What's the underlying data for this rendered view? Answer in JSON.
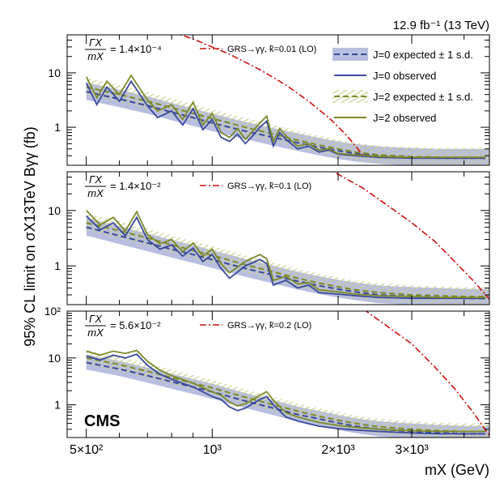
{
  "figure": {
    "lumi_label": "12.9 fb⁻¹ (13 TeV)",
    "experiment": "CMS",
    "ylabel": "95% CL limit on σX13TeV Bγγ (fb)",
    "xlabel": "mX (GeV)"
  },
  "chart_data": {
    "type": "line",
    "x_scale": "log",
    "xlim": [
      450,
      4600
    ],
    "x_ticks": [
      {
        "value": 500,
        "label": "5×10²"
      },
      {
        "value": 1000,
        "label": "10³"
      },
      {
        "value": 2000,
        "label": "2×10³"
      },
      {
        "value": 3000,
        "label": "3×10³"
      }
    ],
    "legend": [
      {
        "name": "J=0 expected ± 1 s.d.",
        "style": "dashed-band",
        "color": "#3a4a9a",
        "band": "#b8bedf"
      },
      {
        "name": "J=0 observed",
        "style": "solid",
        "color": "#3a4a9a"
      },
      {
        "name": "J=2 expected ± 1 s.d.",
        "style": "dashed-hatched",
        "color": "#7c8a2c",
        "band": "#c9cf8e"
      },
      {
        "name": "J=2 observed",
        "style": "solid",
        "color": "#7c8a2c"
      }
    ],
    "panels": [
      {
        "width_label_num": "ΓX",
        "width_label_den": "mX",
        "width_label_value": "= 1.4×10⁻⁴",
        "ylim": [
          0.2,
          50
        ],
        "y_ticks": [
          {
            "value": 1,
            "label": "1"
          },
          {
            "value": 10,
            "label": "10"
          }
        ],
        "theory_label": "GRS→γγ, k̃=0.01 (LO)",
        "theory": {
          "x": [
            700,
            900,
            1100,
            1300,
            1500,
            1700,
            1900,
            2100,
            2300
          ],
          "y": [
            80,
            42,
            22,
            11.5,
            6,
            3,
            1.5,
            0.7,
            0.3
          ]
        },
        "expected_j0": {
          "x": [
            500,
            600,
            700,
            800,
            900,
            1000,
            1200,
            1400,
            1600,
            1800,
            2000,
            2200,
            2500,
            3000,
            3500,
            4000,
            4500
          ],
          "y": [
            4.5,
            3.3,
            2.5,
            1.9,
            1.5,
            1.2,
            0.85,
            0.65,
            0.52,
            0.43,
            0.37,
            0.33,
            0.3,
            0.28,
            0.27,
            0.27,
            0.27
          ]
        },
        "expected_j2": {
          "x": [
            500,
            600,
            700,
            800,
            900,
            1000,
            1200,
            1400,
            1600,
            1800,
            2000,
            2200,
            2500,
            3000,
            3500,
            4000,
            4500
          ],
          "y": [
            5.5,
            4.0,
            3.0,
            2.3,
            1.8,
            1.45,
            1.0,
            0.75,
            0.58,
            0.47,
            0.4,
            0.35,
            0.31,
            0.29,
            0.28,
            0.28,
            0.28
          ]
        },
        "observed_j0": {
          "x": [
            500,
            530,
            560,
            600,
            640,
            700,
            740,
            800,
            850,
            900,
            950,
            1000,
            1050,
            1100,
            1150,
            1200,
            1250,
            1300,
            1350,
            1400,
            1450,
            1500,
            1600,
            1700,
            1800,
            1900,
            2000,
            2200,
            2500,
            3000,
            3500,
            4000,
            4500
          ],
          "y": [
            6.5,
            2.6,
            5.5,
            3.0,
            7.0,
            2.5,
            1.5,
            2.0,
            1.1,
            2.2,
            0.9,
            1.4,
            0.65,
            0.55,
            0.75,
            0.5,
            0.7,
            1.0,
            1.3,
            0.45,
            0.8,
            0.6,
            0.4,
            0.45,
            0.35,
            0.38,
            0.32,
            0.3,
            0.28,
            0.27,
            0.27,
            0.27,
            0.27
          ]
        },
        "observed_j2": {
          "x": [
            500,
            530,
            560,
            600,
            640,
            700,
            740,
            800,
            850,
            900,
            950,
            1000,
            1050,
            1100,
            1150,
            1200,
            1250,
            1300,
            1350,
            1400,
            1450,
            1500,
            1600,
            1700,
            1800,
            1900,
            2000,
            2200,
            2500,
            3000,
            3500,
            4000,
            4500
          ],
          "y": [
            8.5,
            3.5,
            7.0,
            4.0,
            9.0,
            3.2,
            2.0,
            2.6,
            1.4,
            2.9,
            1.1,
            1.8,
            0.8,
            0.65,
            0.95,
            0.6,
            0.85,
            1.2,
            1.6,
            0.55,
            0.95,
            0.7,
            0.45,
            0.5,
            0.38,
            0.4,
            0.33,
            0.31,
            0.29,
            0.28,
            0.28,
            0.28,
            0.28
          ]
        }
      },
      {
        "width_label_num": "ΓX",
        "width_label_den": "mX",
        "width_label_value": "= 1.4×10⁻²",
        "ylim": [
          0.2,
          50
        ],
        "y_ticks": [
          {
            "value": 1,
            "label": "1"
          },
          {
            "value": 10,
            "label": "10"
          }
        ],
        "theory_label": "GRS→γγ, k̃=0.1 (LO)",
        "theory": {
          "x": [
            1750,
            2000,
            2300,
            2600,
            3000,
            3400,
            3800,
            4200,
            4600
          ],
          "y": [
            80,
            45,
            25,
            13,
            6,
            2.8,
            1.2,
            0.55,
            0.25
          ]
        },
        "expected_j0": {
          "x": [
            500,
            600,
            700,
            800,
            900,
            1000,
            1200,
            1400,
            1600,
            1800,
            2000,
            2200,
            2500,
            3000,
            3500,
            4000,
            4500
          ],
          "y": [
            5.0,
            3.5,
            2.6,
            2.0,
            1.6,
            1.3,
            0.9,
            0.68,
            0.53,
            0.44,
            0.38,
            0.34,
            0.3,
            0.28,
            0.27,
            0.26,
            0.26
          ]
        },
        "expected_j2": {
          "x": [
            500,
            600,
            700,
            800,
            900,
            1000,
            1200,
            1400,
            1600,
            1800,
            2000,
            2200,
            2500,
            3000,
            3500,
            4000,
            4500
          ],
          "y": [
            6.0,
            4.3,
            3.2,
            2.4,
            1.9,
            1.55,
            1.05,
            0.78,
            0.6,
            0.49,
            0.42,
            0.37,
            0.33,
            0.3,
            0.29,
            0.28,
            0.28
          ]
        },
        "observed_j0": {
          "x": [
            500,
            540,
            580,
            620,
            660,
            700,
            750,
            800,
            850,
            900,
            950,
            1000,
            1050,
            1100,
            1200,
            1300,
            1350,
            1400,
            1500,
            1600,
            1700,
            1800,
            2000,
            2200,
            2500,
            3000,
            3500,
            4000,
            4500
          ],
          "y": [
            8.0,
            4.5,
            6.0,
            3.5,
            7.5,
            3.0,
            2.0,
            2.4,
            1.5,
            2.1,
            1.2,
            1.6,
            0.9,
            0.6,
            1.0,
            1.3,
            1.1,
            0.45,
            0.55,
            0.4,
            0.45,
            0.33,
            0.31,
            0.29,
            0.27,
            0.26,
            0.26,
            0.26,
            0.26
          ]
        },
        "observed_j2": {
          "x": [
            500,
            540,
            580,
            620,
            660,
            700,
            750,
            800,
            850,
            900,
            950,
            1000,
            1050,
            1100,
            1200,
            1300,
            1350,
            1400,
            1500,
            1600,
            1700,
            1800,
            2000,
            2200,
            2500,
            3000,
            3500,
            4000,
            4500
          ],
          "y": [
            10.0,
            5.5,
            7.5,
            4.3,
            9.5,
            3.7,
            2.5,
            3.0,
            1.8,
            2.6,
            1.5,
            2.0,
            1.1,
            0.75,
            1.2,
            1.6,
            1.35,
            0.55,
            0.65,
            0.47,
            0.5,
            0.37,
            0.34,
            0.31,
            0.29,
            0.28,
            0.27,
            0.27,
            0.27
          ]
        }
      },
      {
        "width_label_num": "ΓX",
        "width_label_den": "mX",
        "width_label_value": "= 5.6×10⁻²",
        "ylim": [
          0.2,
          100
        ],
        "y_ticks": [
          {
            "value": 1,
            "label": "1"
          },
          {
            "value": 10,
            "label": "10"
          },
          {
            "value": 100,
            "label": "10²"
          }
        ],
        "theory_label": "GRS→γγ, k̃=0.2 (LO)",
        "theory": {
          "x": [
            2300,
            2600,
            3000,
            3400,
            3800,
            4200,
            4600
          ],
          "y": [
            110,
            50,
            20,
            6.5,
            2.2,
            0.7,
            0.22
          ]
        },
        "expected_j0": {
          "x": [
            500,
            600,
            700,
            800,
            900,
            1000,
            1200,
            1400,
            1600,
            1800,
            2000,
            2200,
            2500,
            3000,
            3500,
            4000,
            4500
          ],
          "y": [
            8.0,
            5.8,
            4.2,
            3.1,
            2.4,
            1.9,
            1.2,
            0.85,
            0.62,
            0.5,
            0.41,
            0.35,
            0.3,
            0.27,
            0.25,
            0.24,
            0.24
          ]
        },
        "expected_j2": {
          "x": [
            500,
            600,
            700,
            800,
            900,
            1000,
            1200,
            1400,
            1600,
            1800,
            2000,
            2200,
            2500,
            3000,
            3500,
            4000,
            4500
          ],
          "y": [
            10.0,
            7.2,
            5.2,
            3.8,
            2.9,
            2.3,
            1.45,
            1.0,
            0.73,
            0.57,
            0.47,
            0.4,
            0.34,
            0.3,
            0.28,
            0.27,
            0.27
          ]
        },
        "observed_j0": {
          "x": [
            500,
            540,
            580,
            620,
            660,
            700,
            750,
            800,
            900,
            1000,
            1050,
            1100,
            1150,
            1200,
            1300,
            1350,
            1400,
            1500,
            1600,
            1800,
            2000,
            2200,
            2500,
            3000,
            3500,
            4000,
            4500
          ],
          "y": [
            11.0,
            9.0,
            11.5,
            10.0,
            12.0,
            7.0,
            4.5,
            3.5,
            2.4,
            1.5,
            1.3,
            0.9,
            0.75,
            0.85,
            1.3,
            1.5,
            1.0,
            0.55,
            0.45,
            0.35,
            0.31,
            0.29,
            0.27,
            0.25,
            0.24,
            0.24,
            0.24
          ]
        },
        "observed_j2": {
          "x": [
            500,
            540,
            580,
            620,
            660,
            700,
            750,
            800,
            900,
            1000,
            1050,
            1100,
            1150,
            1200,
            1300,
            1350,
            1400,
            1500,
            1600,
            1800,
            2000,
            2200,
            2500,
            3000,
            3500,
            4000,
            4500
          ],
          "y": [
            14.0,
            11.5,
            14.0,
            12.5,
            14.5,
            8.5,
            5.5,
            4.2,
            2.9,
            1.9,
            1.6,
            1.15,
            0.95,
            1.05,
            1.6,
            1.9,
            1.25,
            0.68,
            0.55,
            0.42,
            0.36,
            0.33,
            0.3,
            0.28,
            0.27,
            0.27,
            0.27
          ]
        }
      }
    ]
  }
}
